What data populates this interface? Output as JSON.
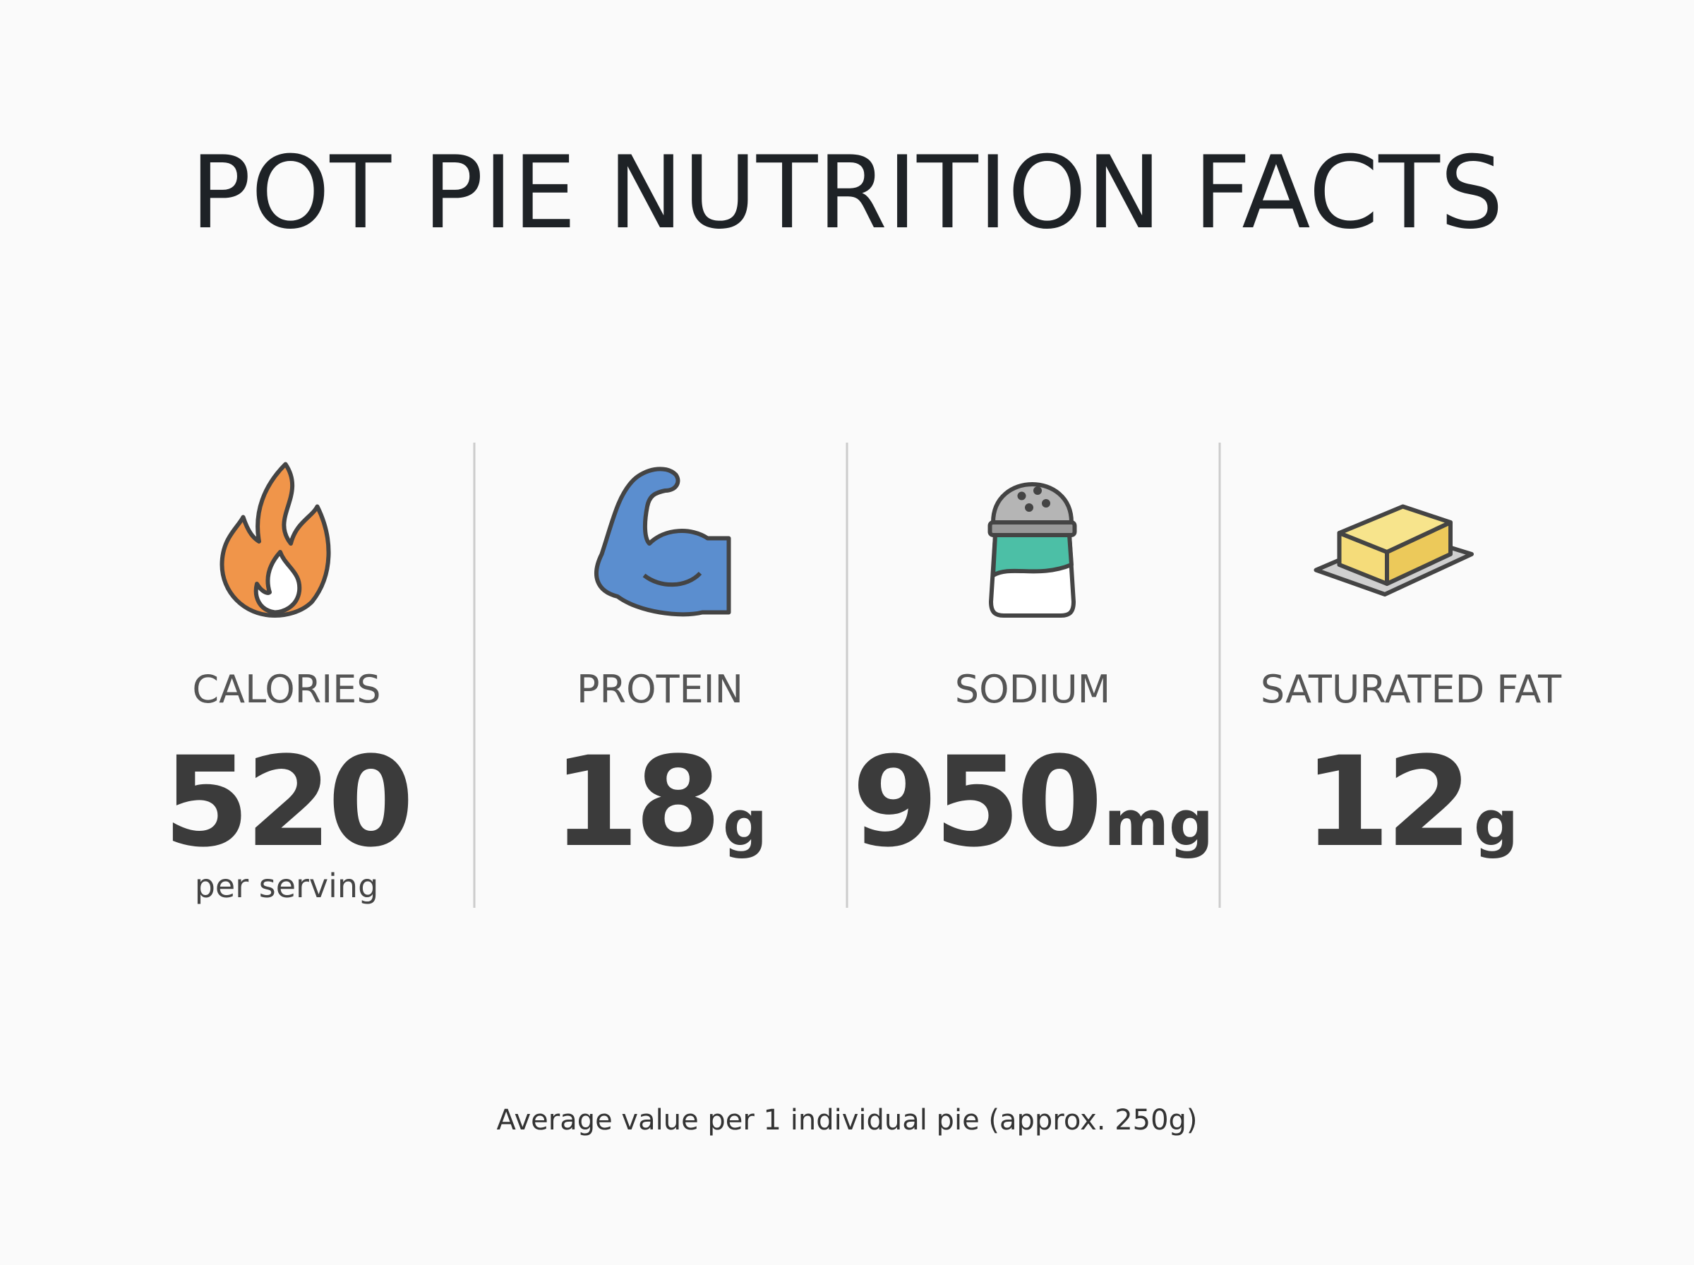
{
  "header": {
    "title": "POT PIE NUTRITION FACTS"
  },
  "stats": [
    {
      "label": "CALORIES",
      "value": 520,
      "note": "per serving"
    },
    {
      "label": "PROTEIN",
      "value": 18,
      "unit": "g"
    },
    {
      "label": "SODIUM",
      "value": 950,
      "unit": "mg"
    },
    {
      "label": "SATURATED FAT",
      "value": 12,
      "unit": "g"
    }
  ],
  "footer": {
    "text": "Average value per 1 individual pie (approx. 250g)"
  }
}
